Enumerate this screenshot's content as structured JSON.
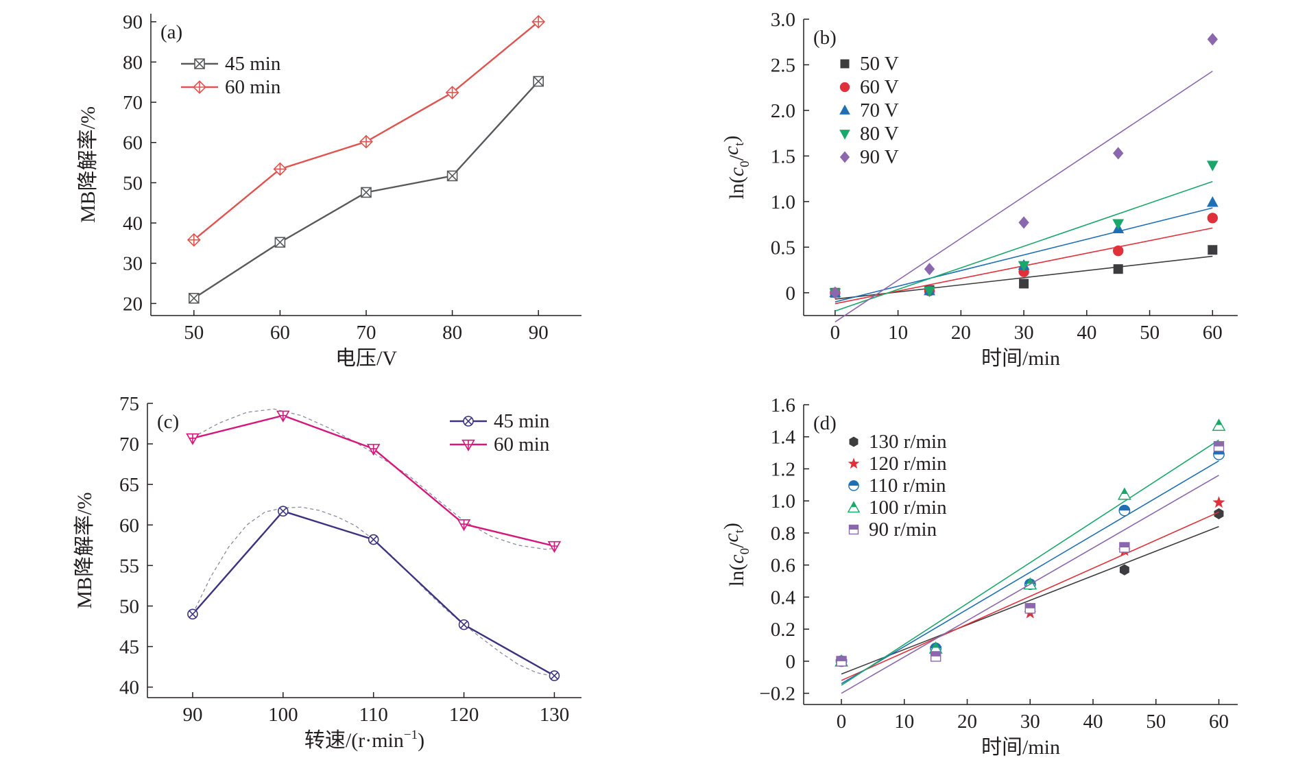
{
  "chart_data": [
    {
      "id": "a",
      "type": "line",
      "panel_label": "(a)",
      "xlabel": "电压/V",
      "ylabel": "MB降解率/%",
      "xlim": [
        45,
        95
      ],
      "ylim": [
        17,
        92
      ],
      "xticks": [
        50,
        60,
        70,
        80,
        90
      ],
      "xtick_labels": [
        "50",
        "60",
        "70",
        "80",
        "90"
      ],
      "yticks": [
        20,
        30,
        40,
        50,
        60,
        70,
        80,
        90
      ],
      "ytick_labels": [
        "20",
        "30",
        "40",
        "50",
        "60",
        "70",
        "80",
        "90"
      ],
      "legend_position": "top-left",
      "series": [
        {
          "name": "45 min",
          "color": "#58595b",
          "marker": "square-x",
          "x": [
            50,
            60,
            70,
            80,
            90
          ],
          "y": [
            21.3,
            35.2,
            47.6,
            51.7,
            75.2
          ]
        },
        {
          "name": "60 min",
          "color": "#e0534f",
          "marker": "diamond-plus",
          "x": [
            50,
            60,
            70,
            80,
            90
          ],
          "y": [
            35.8,
            53.4,
            60.2,
            72.4,
            90.0
          ]
        }
      ]
    },
    {
      "id": "b",
      "type": "scatter",
      "panel_label": "(b)",
      "xlabel": "时间/min",
      "ylabel_parts": [
        "ln(",
        "c",
        "0",
        "/",
        "c",
        "t",
        ")"
      ],
      "xlim": [
        -5,
        64
      ],
      "ylim": [
        -0.25,
        3.0
      ],
      "xticks": [
        0,
        10,
        20,
        30,
        40,
        50,
        60
      ],
      "xtick_labels": [
        "0",
        "10",
        "20",
        "30",
        "40",
        "50",
        "60"
      ],
      "yticks": [
        0,
        0.5,
        1.0,
        1.5,
        2.0,
        2.5,
        3.0
      ],
      "ytick_labels": [
        "0",
        "0.5",
        "1.0",
        "1.5",
        "2.0",
        "2.5",
        "3.0"
      ],
      "legend_position": "top-left",
      "series": [
        {
          "name": "50 V",
          "color": "#3d3d3f",
          "marker": "square",
          "x": [
            0,
            15,
            30,
            45,
            60
          ],
          "y": [
            0,
            0.03,
            0.1,
            0.26,
            0.47
          ],
          "fit": [
            -0.07,
            0.4
          ]
        },
        {
          "name": "60 V",
          "color": "#e0303a",
          "marker": "circle",
          "x": [
            0,
            15,
            30,
            45,
            60
          ],
          "y": [
            0,
            0.02,
            0.23,
            0.46,
            0.82
          ],
          "fit": [
            -0.12,
            0.71
          ]
        },
        {
          "name": "70 V",
          "color": "#1f6fb5",
          "marker": "triangle-up",
          "x": [
            0,
            15,
            30,
            45,
            60
          ],
          "y": [
            0,
            0.02,
            0.3,
            0.7,
            0.99
          ],
          "fit": [
            -0.1,
            0.93
          ]
        },
        {
          "name": "80 V",
          "color": "#1aa76a",
          "marker": "triangle-down",
          "x": [
            0,
            15,
            30,
            45,
            60
          ],
          "y": [
            0,
            0.02,
            0.3,
            0.76,
            1.4
          ],
          "fit": [
            -0.2,
            1.22
          ]
        },
        {
          "name": "90 V",
          "color": "#8b68ad",
          "marker": "diamond",
          "x": [
            0,
            15,
            30,
            45,
            60
          ],
          "y": [
            0,
            0.26,
            0.77,
            1.53,
            2.78
          ],
          "fit": [
            -0.32,
            2.43
          ]
        }
      ]
    },
    {
      "id": "c",
      "type": "line",
      "panel_label": "(c)",
      "xlabel_parts": [
        "转速/(r·min",
        "−1",
        ")"
      ],
      "ylabel": "MB降解率/%",
      "xlim": [
        85,
        133
      ],
      "ylim": [
        38.7,
        75
      ],
      "xticks": [
        90,
        100,
        110,
        120,
        130
      ],
      "xtick_labels": [
        "90",
        "100",
        "110",
        "120",
        "130"
      ],
      "yticks": [
        40,
        45,
        50,
        55,
        60,
        65,
        70,
        75
      ],
      "ytick_labels": [
        "40",
        "45",
        "50",
        "55",
        "60",
        "65",
        "70",
        "75"
      ],
      "legend_position": "top-right",
      "series": [
        {
          "name": "45 min",
          "color": "#3c3380",
          "marker": "circle-x",
          "x": [
            90,
            100,
            110,
            120,
            130
          ],
          "y": [
            49.0,
            61.7,
            58.2,
            47.7,
            41.4
          ]
        },
        {
          "name": "60 min",
          "color": "#d6167a",
          "marker": "triangle-down-plus",
          "x": [
            90,
            100,
            110,
            120,
            130
          ],
          "y": [
            70.7,
            73.5,
            69.4,
            60.1,
            57.4
          ]
        }
      ],
      "trend_curves": [
        {
          "color": "#8a8aa0",
          "x": [
            90,
            93,
            96,
            99,
            102,
            105,
            108,
            111,
            114,
            117,
            120,
            123,
            126,
            129,
            130
          ],
          "y": [
            70.8,
            72.6,
            73.9,
            74.3,
            73.5,
            72.0,
            70.2,
            68.2,
            66.0,
            63.2,
            60.5,
            58.6,
            57.5,
            57.0,
            57.1
          ]
        },
        {
          "color": "#8a8aa0",
          "x": [
            90,
            92,
            94,
            96,
            98,
            100,
            102,
            104,
            106,
            108,
            110,
            112,
            114,
            116,
            118,
            120,
            122,
            124,
            126,
            128,
            130
          ],
          "y": [
            49.0,
            53.6,
            57.3,
            60.0,
            61.6,
            62.1,
            62.2,
            61.8,
            61.0,
            59.9,
            58.2,
            56.2,
            54.0,
            51.7,
            49.6,
            47.7,
            46.0,
            44.3,
            42.8,
            41.8,
            41.3
          ]
        }
      ]
    },
    {
      "id": "d",
      "type": "scatter",
      "panel_label": "(d)",
      "xlabel": "时间/min",
      "ylabel_parts": [
        "ln(",
        "c",
        "0",
        "/",
        "c",
        "t",
        ")"
      ],
      "xlim": [
        -6,
        63
      ],
      "ylim": [
        -0.27,
        1.6
      ],
      "xticks": [
        0,
        10,
        20,
        30,
        40,
        50,
        60
      ],
      "xtick_labels": [
        "0",
        "10",
        "20",
        "30",
        "40",
        "50",
        "60"
      ],
      "yticks": [
        -0.2,
        0,
        0.2,
        0.4,
        0.6,
        0.8,
        1.0,
        1.2,
        1.4,
        1.6
      ],
      "ytick_labels": [
        "−0.2",
        "0",
        "0.2",
        "0.4",
        "0.6",
        "0.8",
        "1.0",
        "1.2",
        "1.4",
        "1.6"
      ],
      "legend_position": "top-left",
      "series": [
        {
          "name": "130 r/min",
          "color": "#3d3d3f",
          "marker": "hexagon",
          "x": [
            0,
            15,
            30,
            45,
            60
          ],
          "y": [
            0,
            0.08,
            0.33,
            0.57,
            0.92
          ],
          "fit": [
            -0.08,
            0.84
          ]
        },
        {
          "name": "120 r/min",
          "color": "#e0303a",
          "marker": "star",
          "x": [
            0,
            15,
            30,
            45,
            60
          ],
          "y": [
            0,
            0.08,
            0.3,
            0.69,
            0.99
          ],
          "fit": [
            -0.12,
            0.93
          ]
        },
        {
          "name": "110 r/min",
          "color": "#1f6fb5",
          "marker": "half-circle",
          "x": [
            0,
            15,
            30,
            45,
            60
          ],
          "y": [
            0,
            0.08,
            0.48,
            0.94,
            1.29
          ],
          "fit": [
            -0.14,
            1.25
          ]
        },
        {
          "name": "100 r/min",
          "color": "#1aa76a",
          "marker": "half-triangle",
          "x": [
            0,
            15,
            30,
            45,
            60
          ],
          "y": [
            0,
            0.08,
            0.48,
            1.04,
            1.47
          ],
          "fit": [
            -0.15,
            1.38
          ]
        },
        {
          "name": "90 r/min",
          "color": "#8b68ad",
          "marker": "half-square",
          "x": [
            0,
            15,
            30,
            45,
            60
          ],
          "y": [
            0,
            0.03,
            0.33,
            0.71,
            1.34
          ],
          "fit": [
            -0.2,
            1.16
          ]
        }
      ]
    }
  ]
}
